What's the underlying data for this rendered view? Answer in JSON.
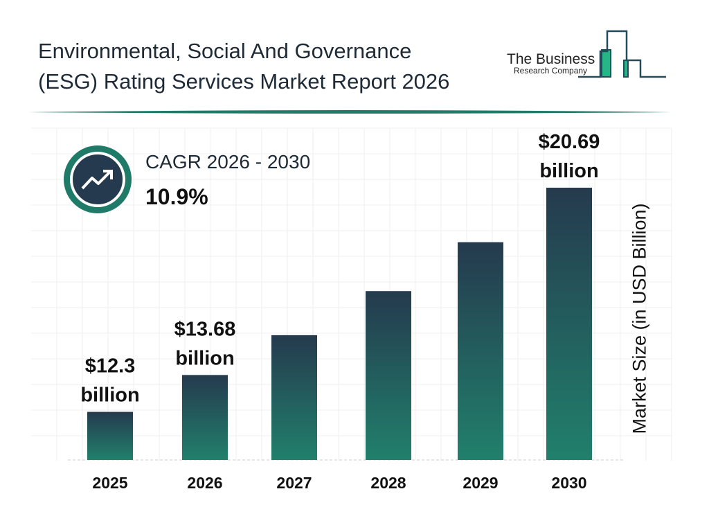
{
  "title_line1": "Environmental, Social And Governance",
  "title_line2": "(ESG) Rating Services Market Report 2026",
  "logo": {
    "line1": "The Business",
    "line2": "Research Company"
  },
  "cagr": {
    "label": "CAGR 2026 - 2030",
    "value": "10.9%",
    "icon": "trending-up-icon"
  },
  "colors": {
    "bar_top": "#253a4e",
    "bar_bottom": "#21806c",
    "accent": "#1f7a68"
  },
  "chart_data": {
    "type": "bar",
    "categories": [
      "2025",
      "2026",
      "2027",
      "2028",
      "2029",
      "2030"
    ],
    "values": [
      12.3,
      13.68,
      15.17,
      16.82,
      18.65,
      20.69
    ],
    "data_labels": [
      "$12.3 billion",
      "$13.68 billion",
      "",
      "",
      "",
      "$20.69 billion"
    ],
    "ylabel": "Market Size (in USD Billion)",
    "xlabel": "",
    "ylim": [
      10.5,
      21
    ],
    "grid": true
  }
}
